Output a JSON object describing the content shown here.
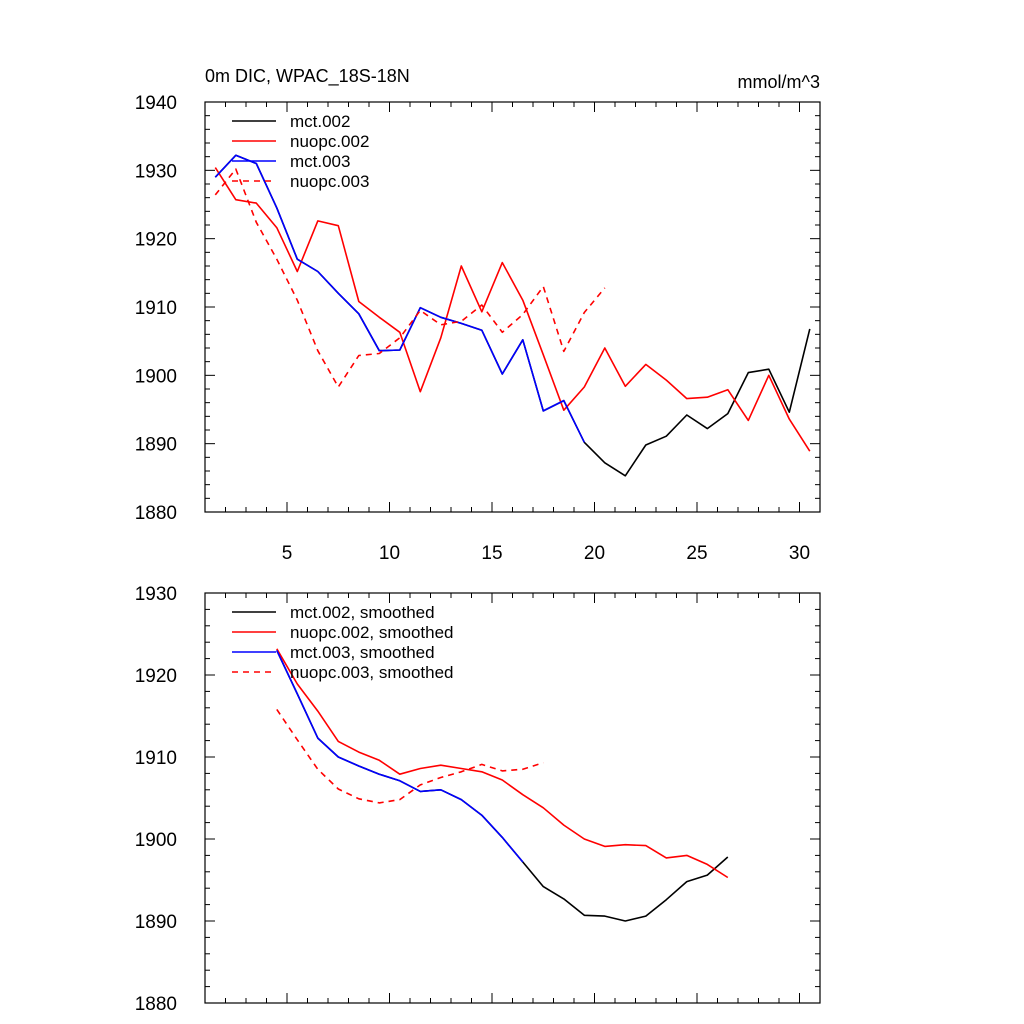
{
  "chart_data": [
    {
      "type": "line",
      "title": "0m DIC, WPAC_18S-18N",
      "units": "mmol/m^3",
      "xlim": [
        1,
        31
      ],
      "ylim": [
        1880,
        1940
      ],
      "xticks": [
        5,
        10,
        15,
        20,
        25,
        30
      ],
      "yticks": [
        1880,
        1890,
        1900,
        1910,
        1920,
        1930,
        1940
      ],
      "legend_position": "top-left",
      "series": [
        {
          "name": "mct.002",
          "color": "#000000",
          "dash": "solid",
          "x": [
            1.5,
            2.5,
            3.5,
            4.5,
            5.5,
            6.5,
            7.5,
            8.5,
            9.5,
            10.5,
            11.5,
            12.5,
            13.5,
            14.5,
            15.5,
            16.5,
            17.5,
            18.5,
            19.5,
            20.5,
            21.5,
            22.5,
            23.5,
            24.5,
            25.5,
            26.5,
            27.5,
            28.5,
            29.5,
            30.5
          ],
          "values": [
            1929.0,
            1932.2,
            1931.0,
            1924.5,
            1917.0,
            1915.2,
            1912.0,
            1909.0,
            1903.6,
            1903.7,
            1909.9,
            1908.5,
            1907.6,
            1906.6,
            1900.2,
            1905.2,
            1894.8,
            1896.3,
            1890.2,
            1887.2,
            1885.3,
            1889.8,
            1891.1,
            1894.2,
            1892.2,
            1894.4,
            1900.4,
            1900.9,
            1894.6,
            1906.8
          ]
        },
        {
          "name": "nuopc.002",
          "color": "#ff0000",
          "dash": "solid",
          "x": [
            1.5,
            2.5,
            3.5,
            4.5,
            5.5,
            6.5,
            7.5,
            8.5,
            9.5,
            10.5,
            11.5,
            12.5,
            13.5,
            14.5,
            15.5,
            16.5,
            17.5,
            18.5,
            19.5,
            20.5,
            21.5,
            22.5,
            23.5,
            24.5,
            25.5,
            26.5,
            27.5,
            28.5,
            29.5,
            30.5
          ],
          "values": [
            1930.4,
            1925.7,
            1925.2,
            1921.6,
            1915.2,
            1922.6,
            1921.9,
            1910.8,
            1908.5,
            1906.3,
            1897.6,
            1905.5,
            1916.0,
            1909.3,
            1916.5,
            1911.0,
            1903.0,
            1894.9,
            1898.3,
            1904.0,
            1898.4,
            1901.6,
            1899.3,
            1896.6,
            1896.8,
            1897.9,
            1893.4,
            1900.0,
            1893.6,
            1888.9
          ]
        },
        {
          "name": "mct.003",
          "color": "#0000ff",
          "dash": "solid",
          "x": [
            1.5,
            2.5,
            3.5,
            4.5,
            5.5,
            6.5,
            7.5,
            8.5,
            9.5,
            10.5,
            11.5,
            12.5,
            13.5,
            14.5,
            15.5,
            16.5,
            17.5,
            18.5,
            19.5
          ],
          "values": [
            1929.0,
            1932.2,
            1931.0,
            1924.5,
            1917.0,
            1915.2,
            1912.0,
            1909.0,
            1903.6,
            1903.7,
            1909.9,
            1908.5,
            1907.6,
            1906.6,
            1900.2,
            1905.2,
            1894.8,
            1896.3,
            1890.2
          ]
        },
        {
          "name": "nuopc.003",
          "color": "#ff0000",
          "dash": "dashed",
          "x": [
            1.5,
            2.5,
            3.5,
            4.5,
            5.5,
            6.5,
            7.5,
            8.5,
            9.5,
            10.5,
            11.5,
            12.5,
            13.5,
            14.5,
            15.5,
            16.5,
            17.5,
            18.5,
            19.5,
            20.5
          ],
          "values": [
            1926.4,
            1930.2,
            1922.4,
            1917.0,
            1911.0,
            1903.6,
            1898.3,
            1902.9,
            1903.2,
            1905.5,
            1909.5,
            1907.4,
            1907.9,
            1910.3,
            1906.3,
            1908.9,
            1913.0,
            1903.5,
            1909.2,
            1912.8
          ]
        }
      ]
    },
    {
      "type": "line",
      "title": "",
      "units": "",
      "xlim": [
        1,
        31
      ],
      "ylim": [
        1880,
        1930
      ],
      "xticks": [
        5,
        10,
        15,
        20,
        25,
        30
      ],
      "yticks": [
        1880,
        1890,
        1900,
        1910,
        1920,
        1930
      ],
      "show_x_labels": false,
      "legend_position": "top-left",
      "series": [
        {
          "name": "mct.002, smoothed",
          "color": "#000000",
          "dash": "solid",
          "x": [
            4.5,
            5.5,
            6.5,
            7.5,
            8.5,
            9.5,
            10.5,
            11.5,
            12.5,
            13.5,
            14.5,
            15.5,
            16.5,
            17.5,
            18.5,
            19.5,
            20.5,
            21.5,
            22.5,
            23.5,
            24.5,
            25.5,
            26.5,
            27.5
          ],
          "values": [
            1923.0,
            1917.7,
            1912.3,
            1910.0,
            1908.9,
            1907.9,
            1907.1,
            1905.8,
            1906.0,
            1904.8,
            1902.9,
            1900.2,
            1897.2,
            1894.2,
            1892.7,
            1890.7,
            1890.6,
            1890.0,
            1890.6,
            1892.6,
            1894.8,
            1895.6,
            1897.8,
            null
          ]
        },
        {
          "name": "nuopc.002, smoothed",
          "color": "#ff0000",
          "dash": "solid",
          "x": [
            4.5,
            5.5,
            6.5,
            7.5,
            8.5,
            9.5,
            10.5,
            11.5,
            12.5,
            13.5,
            14.5,
            15.5,
            16.5,
            17.5,
            18.5,
            19.5,
            20.5,
            21.5,
            22.5,
            23.5,
            24.5,
            25.5,
            26.5,
            27.5
          ],
          "values": [
            1923.2,
            1918.9,
            1915.6,
            1911.9,
            1910.6,
            1909.6,
            1907.9,
            1908.6,
            1909.0,
            1908.6,
            1908.2,
            1907.2,
            1905.4,
            1903.8,
            1901.7,
            1900.0,
            1899.1,
            1899.3,
            1899.2,
            1897.7,
            1898.0,
            1896.9,
            1895.3,
            null
          ]
        },
        {
          "name": "mct.003, smoothed",
          "color": "#0000ff",
          "dash": "solid",
          "x": [
            4.5,
            5.5,
            6.5,
            7.5,
            8.5,
            9.5,
            10.5,
            11.5,
            12.5,
            13.5,
            14.5,
            15.5,
            16.5
          ],
          "values": [
            1923.0,
            1917.7,
            1912.3,
            1910.0,
            1908.9,
            1907.9,
            1907.1,
            1905.8,
            1906.0,
            1904.8,
            1902.9,
            1900.2,
            1897.2
          ]
        },
        {
          "name": "nuopc.003, smoothed",
          "color": "#ff0000",
          "dash": "dashed",
          "x": [
            4.5,
            5.5,
            6.5,
            7.5,
            8.5,
            9.5,
            10.5,
            11.5,
            12.5,
            13.5,
            14.5,
            15.5,
            16.5,
            17.5
          ],
          "values": [
            1915.8,
            1912.1,
            1908.5,
            1906.1,
            1904.9,
            1904.4,
            1904.8,
            1906.6,
            1907.5,
            1908.2,
            1909.1,
            1908.3,
            1908.5,
            1909.3
          ]
        }
      ]
    }
  ]
}
